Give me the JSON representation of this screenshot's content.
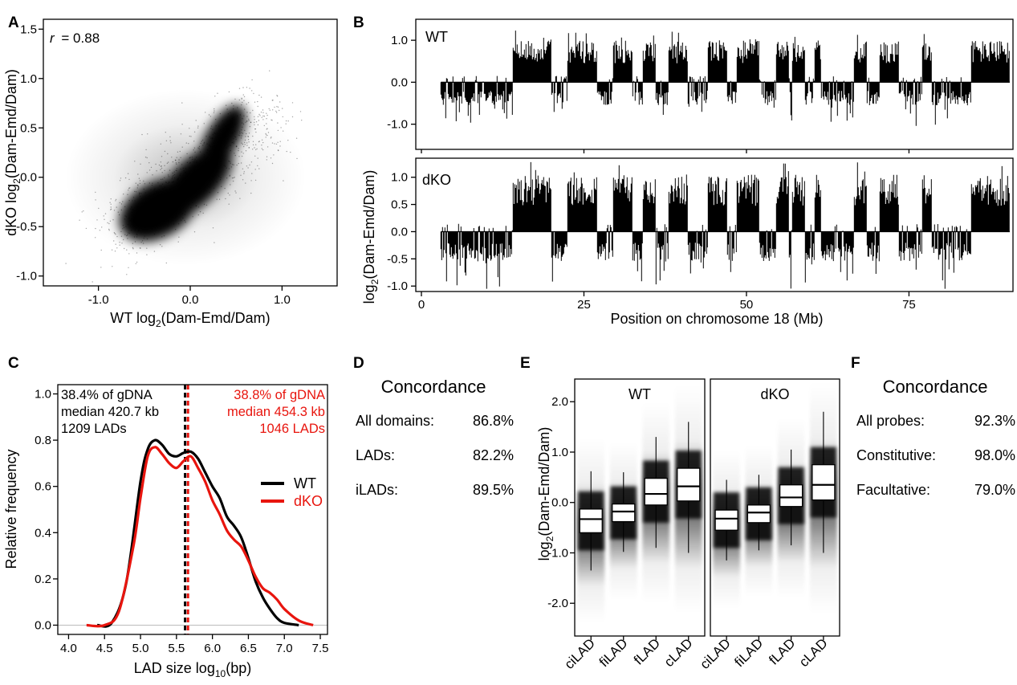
{
  "panels": {
    "A": "A",
    "B": "B",
    "C": "C",
    "D": "D",
    "E": "E",
    "F": "F"
  },
  "colors": {
    "wt": "#000000",
    "dko": "#e8150e",
    "grid": "#bbbbbb"
  },
  "chart_data": [
    {
      "id": "A",
      "type": "scatter",
      "annotation_r": "r",
      "annotation_eq": "= 0.88",
      "xlabel_pre": "WT log",
      "xlabel_sub": "2",
      "xlabel_post": "(Dam-Emd/Dam)",
      "ylabel_pre": "dKO log",
      "ylabel_sub": "2",
      "ylabel_post": "(Dam-Emd/Dam)",
      "xlim": [
        -1.6,
        1.6
      ],
      "ylim": [
        -1.1,
        1.6
      ],
      "xticks": [
        -1.0,
        0.0,
        1.0
      ],
      "xtick_labels": [
        "-1.0",
        "0.0",
        "1.0"
      ],
      "yticks": [
        -1.0,
        -0.5,
        0.0,
        0.5,
        1.0,
        1.5
      ],
      "ytick_labels": [
        "-1.0",
        "-0.5",
        "0.0",
        "0.5",
        "1.0",
        "1.5"
      ],
      "density_centers": [
        {
          "x": -0.35,
          "y": -0.33
        },
        {
          "x": 0.05,
          "y": -0.05
        },
        {
          "x": 0.35,
          "y": 0.4
        }
      ]
    },
    {
      "id": "B",
      "type": "area",
      "ylabel_pre": "log",
      "ylabel_sub": "2",
      "ylabel_post": "(Dam-Emd/Dam)",
      "xlabel": "Position on chromosome 18 (Mb)",
      "xlim": [
        0,
        91
      ],
      "xticks": [
        0,
        25,
        50,
        75
      ],
      "xtick_labels": [
        "0",
        "25",
        "50",
        "75"
      ],
      "data_range": [
        3,
        90.5
      ],
      "series": [
        {
          "name": "WT",
          "ylim": [
            -1.6,
            1.5
          ],
          "yticks": [
            -1.0,
            0.0,
            1.0
          ],
          "ytick_labels": [
            "-1.0",
            "0.0",
            "1.0"
          ]
        },
        {
          "name": "dKO",
          "ylim": [
            -1.1,
            1.35
          ],
          "yticks": [
            -1.0,
            -0.5,
            0.0,
            0.5,
            1.0
          ],
          "ytick_labels": [
            "-1.0",
            "-0.5",
            "0.0",
            "0.5",
            "1.0"
          ]
        }
      ],
      "lad_regions_mb": [
        [
          14,
          20
        ],
        [
          22.5,
          27
        ],
        [
          29.5,
          32.5
        ],
        [
          34,
          36
        ],
        [
          38,
          41
        ],
        [
          44,
          47
        ],
        [
          48.5,
          52
        ],
        [
          54.5,
          56.5
        ],
        [
          57,
          59
        ],
        [
          60.5,
          61.5
        ],
        [
          66.5,
          68.5
        ],
        [
          70.5,
          73.5
        ],
        [
          77,
          78.5
        ],
        [
          84.5,
          90.5
        ]
      ]
    },
    {
      "id": "C",
      "type": "line",
      "xlabel_pre": "LAD size log",
      "xlabel_sub": "10",
      "xlabel_post": "(bp)",
      "ylabel": "Relative frequency",
      "xlim": [
        3.85,
        7.6
      ],
      "ylim": [
        -0.04,
        1.04
      ],
      "xticks": [
        4.0,
        4.5,
        5.0,
        5.5,
        6.0,
        6.5,
        7.0,
        7.5
      ],
      "xtick_labels": [
        "4.0",
        "4.5",
        "5.0",
        "5.5",
        "6.0",
        "6.5",
        "7.0",
        "7.5"
      ],
      "yticks": [
        0.0,
        0.2,
        0.4,
        0.6,
        0.8,
        1.0
      ],
      "ytick_labels": [
        "0.0",
        "0.2",
        "0.4",
        "0.6",
        "0.8",
        "1.0"
      ],
      "wt_text": [
        "38.4% of gDNA",
        "median 420.7 kb",
        "1209 LADs"
      ],
      "dko_text": [
        "38.8% of gDNA",
        "median 454.3 kb",
        "1046 LADs"
      ],
      "medians": {
        "WT": 5.62,
        "dKO": 5.66
      },
      "legend": [
        "WT",
        "dKO"
      ],
      "series": [
        {
          "name": "WT",
          "x": [
            4.4,
            4.6,
            4.8,
            5.0,
            5.1,
            5.2,
            5.3,
            5.4,
            5.5,
            5.6,
            5.7,
            5.8,
            5.9,
            6.0,
            6.1,
            6.2,
            6.3,
            6.4,
            6.5,
            6.6,
            6.7,
            6.8,
            6.9,
            7.0,
            7.2
          ],
          "y": [
            0.0,
            0.01,
            0.18,
            0.62,
            0.76,
            0.8,
            0.78,
            0.74,
            0.73,
            0.745,
            0.75,
            0.72,
            0.66,
            0.6,
            0.55,
            0.47,
            0.43,
            0.38,
            0.29,
            0.19,
            0.12,
            0.07,
            0.03,
            0.01,
            0.0
          ]
        },
        {
          "name": "dKO",
          "x": [
            4.25,
            4.5,
            4.7,
            4.9,
            5.0,
            5.1,
            5.2,
            5.3,
            5.4,
            5.5,
            5.6,
            5.7,
            5.8,
            5.9,
            6.0,
            6.1,
            6.2,
            6.3,
            6.4,
            6.5,
            6.6,
            6.7,
            6.8,
            6.9,
            7.0,
            7.2,
            7.4
          ],
          "y": [
            0.0,
            0.0,
            0.06,
            0.34,
            0.55,
            0.73,
            0.77,
            0.74,
            0.7,
            0.68,
            0.71,
            0.73,
            0.68,
            0.62,
            0.54,
            0.48,
            0.41,
            0.37,
            0.34,
            0.28,
            0.21,
            0.16,
            0.14,
            0.11,
            0.07,
            0.02,
            0.0
          ]
        }
      ]
    },
    {
      "id": "D",
      "type": "table",
      "title": "Concordance",
      "rows": [
        {
          "label": "All domains:",
          "value": "86.8%"
        },
        {
          "label": "LADs:",
          "value": "82.2%"
        },
        {
          "label": "iLADs:",
          "value": "89.5%"
        }
      ]
    },
    {
      "id": "E",
      "type": "box",
      "ylabel_pre": "log",
      "ylabel_sub": "2",
      "ylabel_post": "(Dam-Emd/Dam)",
      "ylim": [
        -2.65,
        2.45
      ],
      "yticks": [
        -2.0,
        -1.0,
        0.0,
        1.0,
        2.0
      ],
      "ytick_labels": [
        "-2.0",
        "-1.0",
        "0.0",
        "1.0",
        "2.0"
      ],
      "categories": [
        "ciLAD",
        "fiLAD",
        "fLAD",
        "cLAD"
      ],
      "facets": [
        {
          "name": "WT",
          "boxes": [
            {
              "q1": -0.6,
              "median": -0.33,
              "q3": -0.13,
              "lo": -1.35,
              "hi": 0.62
            },
            {
              "q1": -0.38,
              "median": -0.18,
              "q3": -0.03,
              "lo": -0.98,
              "hi": 0.6
            },
            {
              "q1": -0.05,
              "median": 0.17,
              "q3": 0.48,
              "lo": -0.9,
              "hi": 1.3
            },
            {
              "q1": 0.03,
              "median": 0.32,
              "q3": 0.68,
              "lo": -1.0,
              "hi": 1.6
            }
          ]
        },
        {
          "name": "dKO",
          "boxes": [
            {
              "q1": -0.55,
              "median": -0.32,
              "q3": -0.15,
              "lo": -1.15,
              "hi": 0.45
            },
            {
              "q1": -0.4,
              "median": -0.2,
              "q3": -0.05,
              "lo": -0.95,
              "hi": 0.55
            },
            {
              "q1": -0.08,
              "median": 0.1,
              "q3": 0.35,
              "lo": -0.85,
              "hi": 1.05
            },
            {
              "q1": 0.05,
              "median": 0.35,
              "q3": 0.75,
              "lo": -1.0,
              "hi": 1.8
            }
          ]
        }
      ]
    },
    {
      "id": "F",
      "type": "table",
      "title": "Concordance",
      "rows": [
        {
          "label": "All probes:",
          "value": "92.3%"
        },
        {
          "label": "Constitutive:",
          "value": "98.0%"
        },
        {
          "label": "Facultative:",
          "value": "79.0%"
        }
      ]
    }
  ]
}
